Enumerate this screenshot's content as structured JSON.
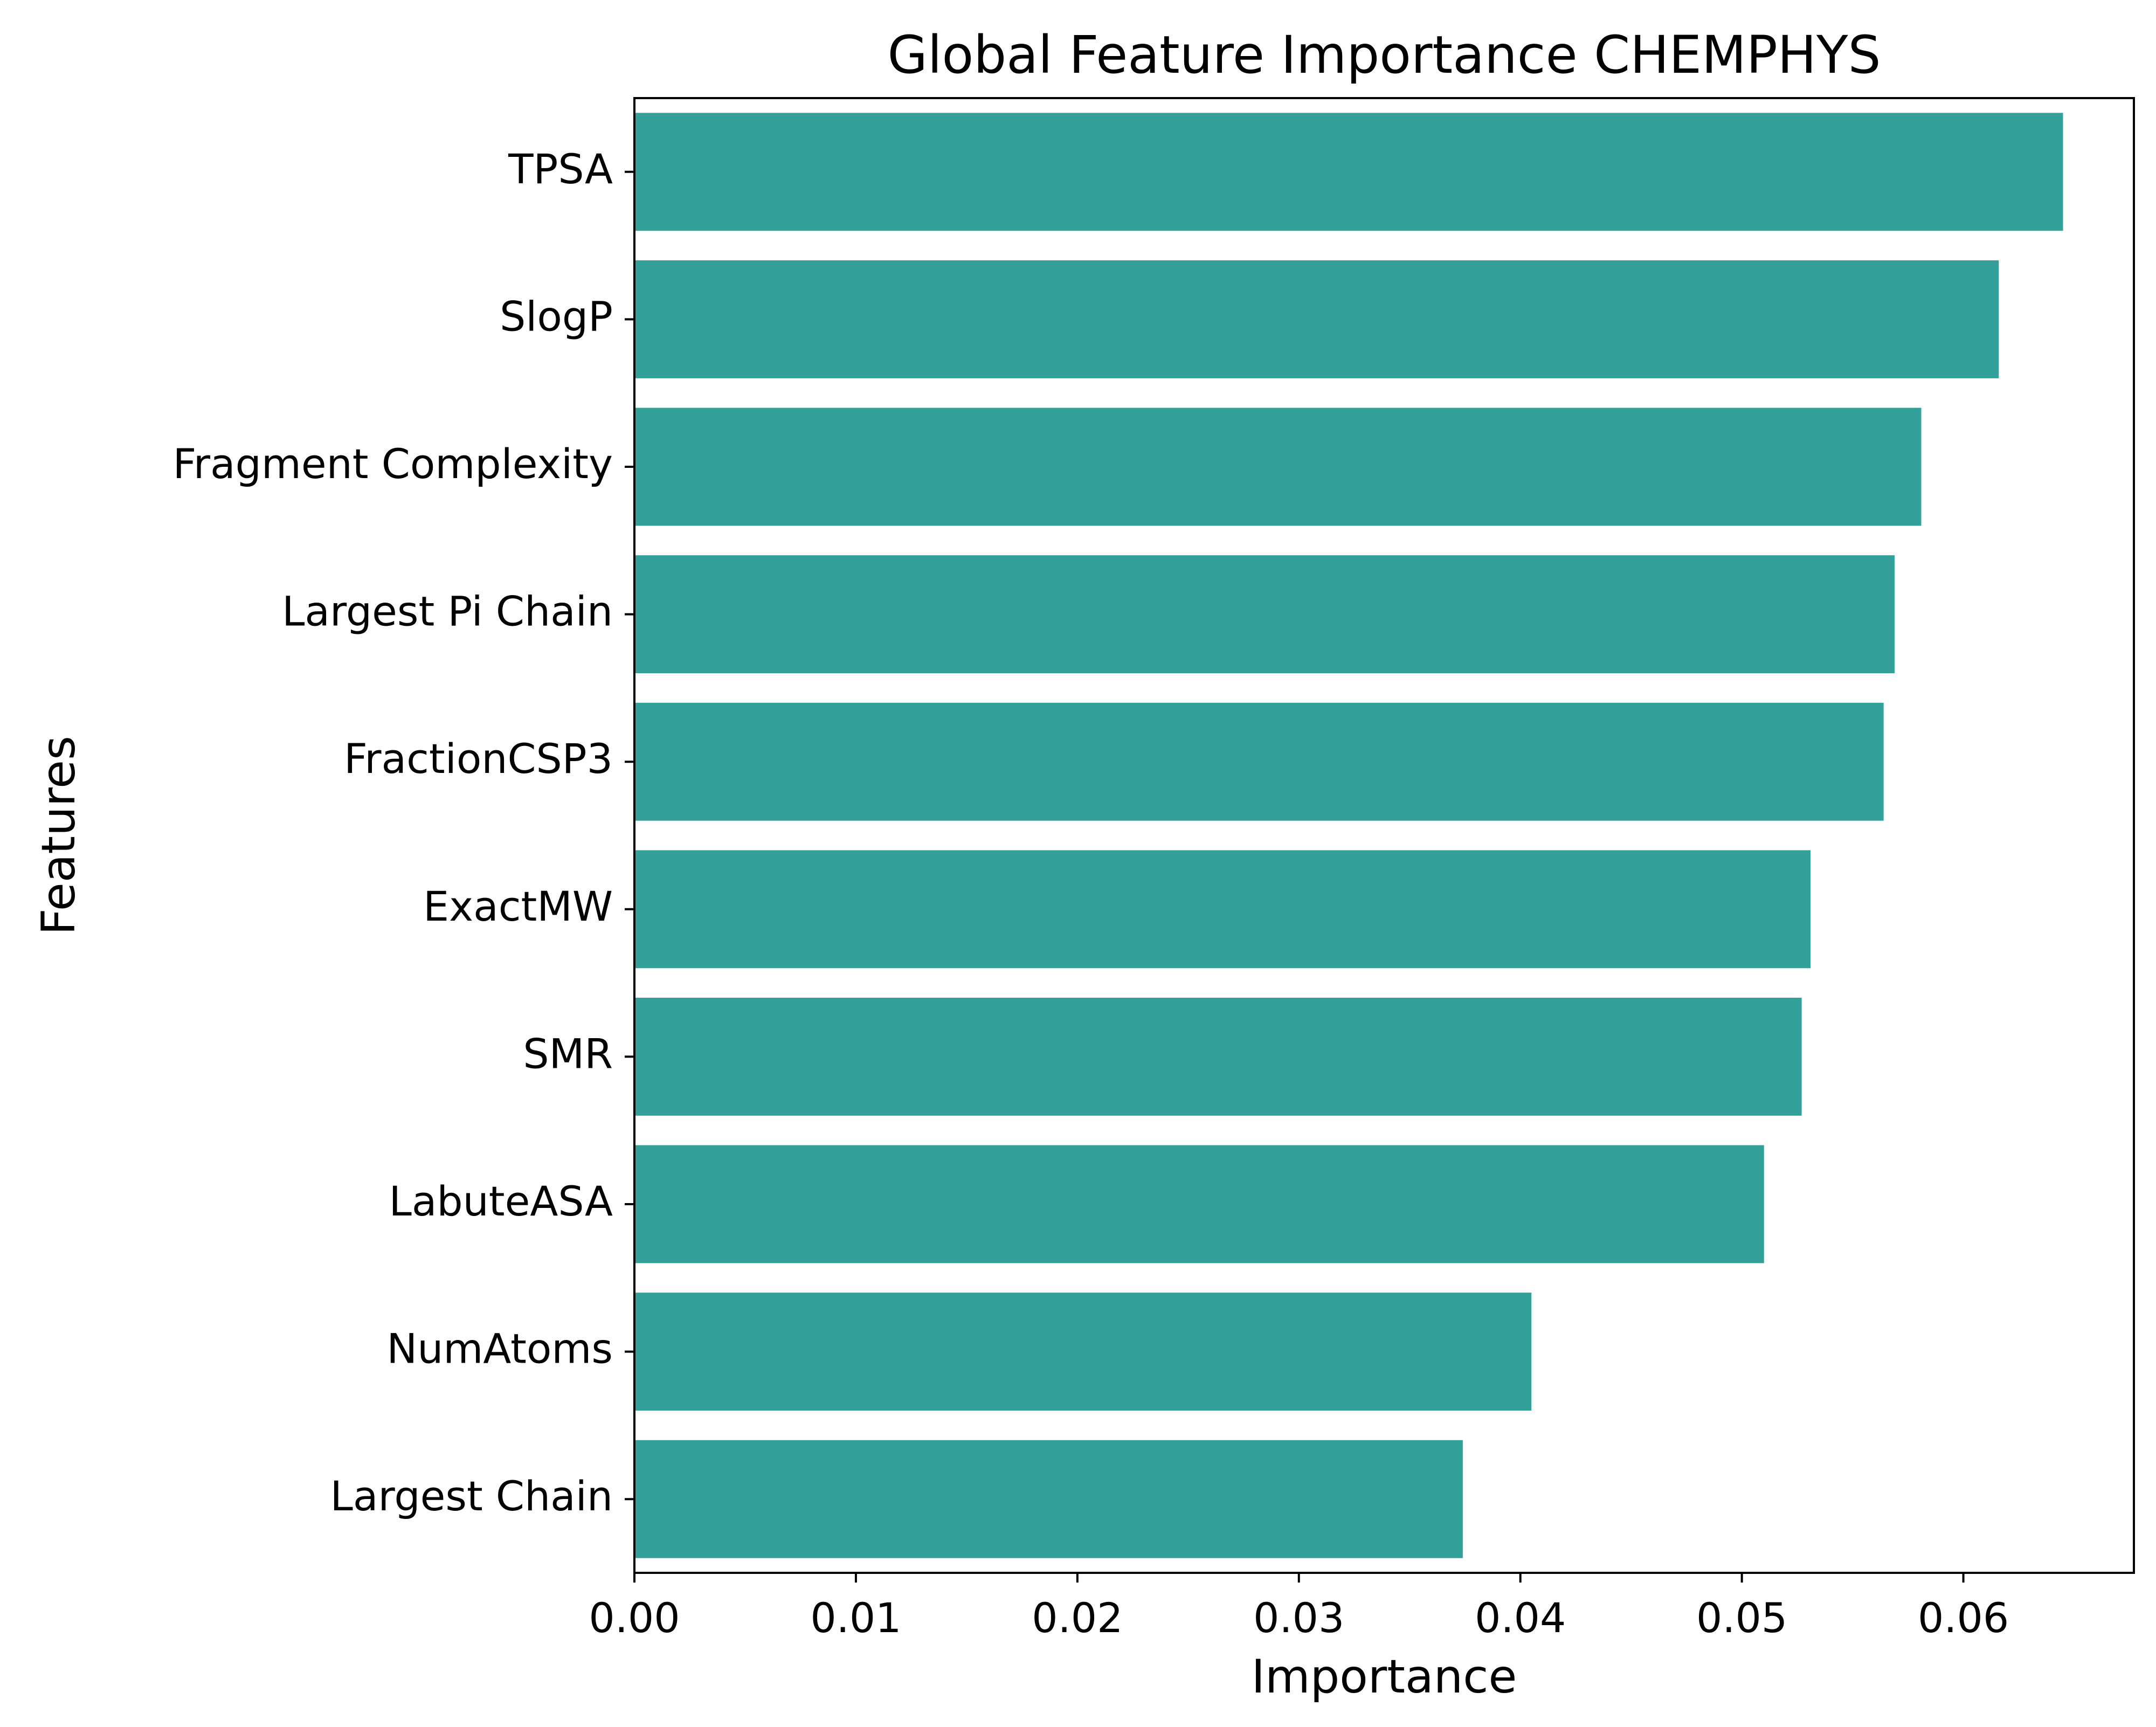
{
  "chart_data": {
    "type": "bar",
    "orientation": "horizontal",
    "title": "Global Feature Importance CHEMPHYS",
    "xlabel": "Importance",
    "ylabel": "Features",
    "categories": [
      "TPSA",
      "SlogP",
      "Fragment Complexity",
      "Largest Pi Chain",
      "FractionCSP3",
      "ExactMW",
      "SMR",
      "LabuteASA",
      "NumAtoms",
      "Largest Chain"
    ],
    "values": [
      0.0645,
      0.0616,
      0.0581,
      0.0569,
      0.0564,
      0.0531,
      0.0527,
      0.051,
      0.0405,
      0.0374
    ],
    "xlim": [
      0,
      0.0677
    ],
    "xticks": [
      0.0,
      0.01,
      0.02,
      0.03,
      0.04,
      0.05,
      0.06
    ],
    "xtick_labels": [
      "0.00",
      "0.01",
      "0.02",
      "0.03",
      "0.04",
      "0.05",
      "0.06"
    ],
    "bar_color": "#33a19a",
    "grid": false
  }
}
